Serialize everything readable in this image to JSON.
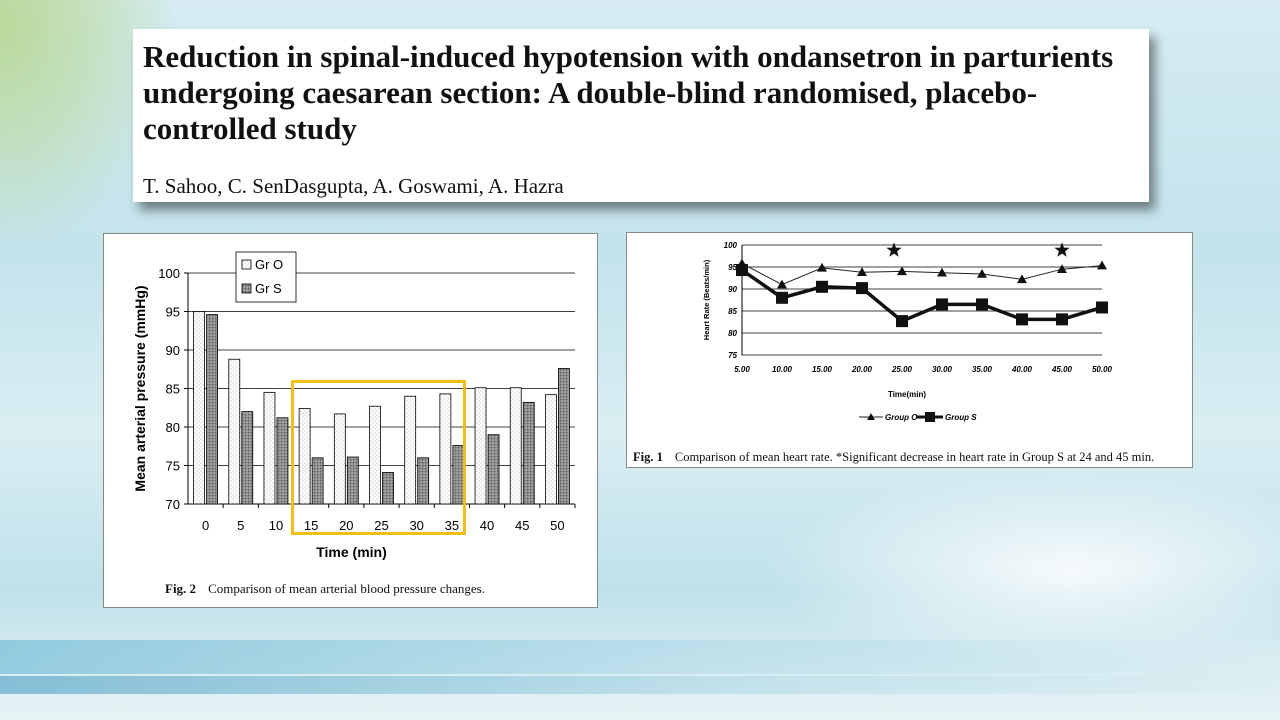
{
  "slide": {
    "title": "Reduction in spinal-induced hypotension with ondansetron in parturients undergoing caesarean section: A double-blind randomised, placebo-controlled study",
    "authors": "T. Sahoo, C. SenDasgupta, A. Goswami, A. Hazra"
  },
  "colors": {
    "highlight": "#f2bf16",
    "group_o": "#ffffff",
    "group_s": "#8c8c8c"
  },
  "fig2": {
    "caption_label": "Fig. 2",
    "caption_text": "Comparison of mean arterial blood pressure changes."
  },
  "fig1": {
    "caption_label": "Fig. 1",
    "caption_text": "Comparison of mean heart rate. *Significant decrease in heart rate in Group S at 24 and 45 min."
  },
  "chart_data": [
    {
      "type": "bar",
      "title": "",
      "xlabel": "Time (min)",
      "ylabel": "Mean arterial pressure (mmHg)",
      "categories": [
        "0",
        "5",
        "10",
        "15",
        "20",
        "25",
        "30",
        "35",
        "40",
        "45",
        "50"
      ],
      "ylim": [
        70,
        100
      ],
      "yticks": [
        70,
        75,
        80,
        85,
        90,
        95,
        100
      ],
      "grid": "horizontal",
      "legend": "top-left",
      "highlight_range": [
        "15",
        "35"
      ],
      "series": [
        {
          "name": "Gr O",
          "values": [
            95.0,
            88.8,
            84.5,
            82.4,
            81.7,
            82.7,
            84.0,
            84.3,
            85.1,
            85.1,
            84.2
          ]
        },
        {
          "name": "Gr S",
          "values": [
            94.6,
            82.0,
            81.2,
            76.0,
            76.1,
            74.1,
            76.0,
            77.6,
            79.0,
            83.2,
            87.6
          ]
        }
      ]
    },
    {
      "type": "line",
      "title": "",
      "xlabel": "Time(min)",
      "ylabel": "Heart Rate (Beats/min)",
      "x": [
        "5.00",
        "10.00",
        "15.00",
        "20.00",
        "25.00",
        "30.00",
        "35.00",
        "40.00",
        "45.00",
        "50.00"
      ],
      "ylim": [
        75,
        100
      ],
      "yticks": [
        75,
        80,
        85,
        90,
        95,
        100
      ],
      "grid": "horizontal",
      "legend": "bottom",
      "series": [
        {
          "name": "Group O",
          "marker": "triangle",
          "values": [
            95.8,
            91.0,
            94.8,
            93.8,
            94.0,
            93.7,
            93.4,
            92.2,
            94.5,
            95.3
          ]
        },
        {
          "name": "Group S",
          "marker": "square",
          "values": [
            94.3,
            88.0,
            90.5,
            90.2,
            82.7,
            86.5,
            86.5,
            83.1,
            83.1,
            85.8
          ]
        }
      ],
      "annotations": [
        {
          "marker": "star",
          "x": 24,
          "y": 98.8
        },
        {
          "marker": "star",
          "x": 45,
          "y": 98.8
        }
      ]
    }
  ]
}
